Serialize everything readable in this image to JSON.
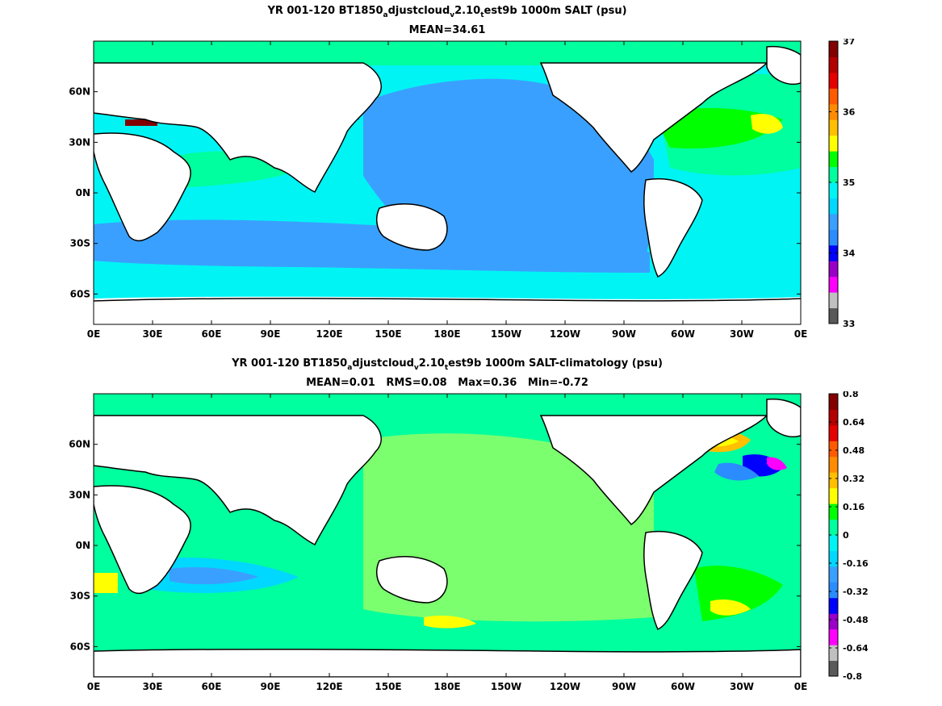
{
  "panels": [
    {
      "title": {
        "a": "YR 001-120 BT1850",
        "s1": "a",
        "b": "djustcloud",
        "s2": "v",
        "c": "2.10",
        "s3": "t",
        "d": "est9b 1000m SALT (psu)"
      },
      "stats": "MEAN=34.61",
      "field": "salinity",
      "colorbar": {
        "colors": [
          "#595959",
          "#c0c0c0",
          "#ff00ff",
          "#9a00c8",
          "#0000ff",
          "#2a8cff",
          "#3aa0ff",
          "#00d8ff",
          "#00f4f4",
          "#00ff9e",
          "#00ff00",
          "#ffff00",
          "#ffc000",
          "#ff8c00",
          "#ff5a00",
          "#e60000",
          "#b40000",
          "#820000"
        ],
        "ticks": [
          {
            "label": "37",
            "f": 1.0
          },
          {
            "label": "36",
            "f": 0.75
          },
          {
            "label": "35",
            "f": 0.5
          },
          {
            "label": "34",
            "f": 0.25
          },
          {
            "label": "33",
            "f": 0.0
          }
        ]
      }
    },
    {
      "title": {
        "a": "YR 001-120 BT1850",
        "s1": "a",
        "b": "djustcloud",
        "s2": "v",
        "c": "2.10",
        "s3": "t",
        "d": "est9b 1000m SALT-climatology (psu)"
      },
      "stats": "MEAN=0.01   RMS=0.08   Max=0.36   Min=-0.72",
      "field": "anomaly",
      "colorbar": {
        "colors": [
          "#595959",
          "#c0c0c0",
          "#ff00ff",
          "#9a00c8",
          "#0000ff",
          "#2a8cff",
          "#3aa0ff",
          "#00d8ff",
          "#00f4f4",
          "#00ff9e",
          "#00ff00",
          "#ffff00",
          "#ffc000",
          "#ff8c00",
          "#ff5a00",
          "#e60000",
          "#b40000",
          "#820000"
        ],
        "ticks": [
          {
            "label": "0.8",
            "f": 1.0
          },
          {
            "label": "0.64",
            "f": 0.9
          },
          {
            "label": "0.48",
            "f": 0.8
          },
          {
            "label": "0.32",
            "f": 0.7
          },
          {
            "label": "0.16",
            "f": 0.6
          },
          {
            "label": "0",
            "f": 0.5
          },
          {
            "label": "-0.16",
            "f": 0.4
          },
          {
            "label": "-0.32",
            "f": 0.3
          },
          {
            "label": "-0.48",
            "f": 0.2
          },
          {
            "label": "-0.64",
            "f": 0.1
          },
          {
            "label": "-0.8",
            "f": 0.0
          }
        ]
      }
    }
  ],
  "lat_ticks": [
    "60N",
    "30N",
    "0N",
    "30S",
    "60S"
  ],
  "lon_ticks": [
    "0E",
    "30E",
    "60E",
    "90E",
    "120E",
    "150E",
    "180E",
    "150W",
    "120W",
    "90W",
    "60W",
    "30W",
    "0E"
  ]
}
